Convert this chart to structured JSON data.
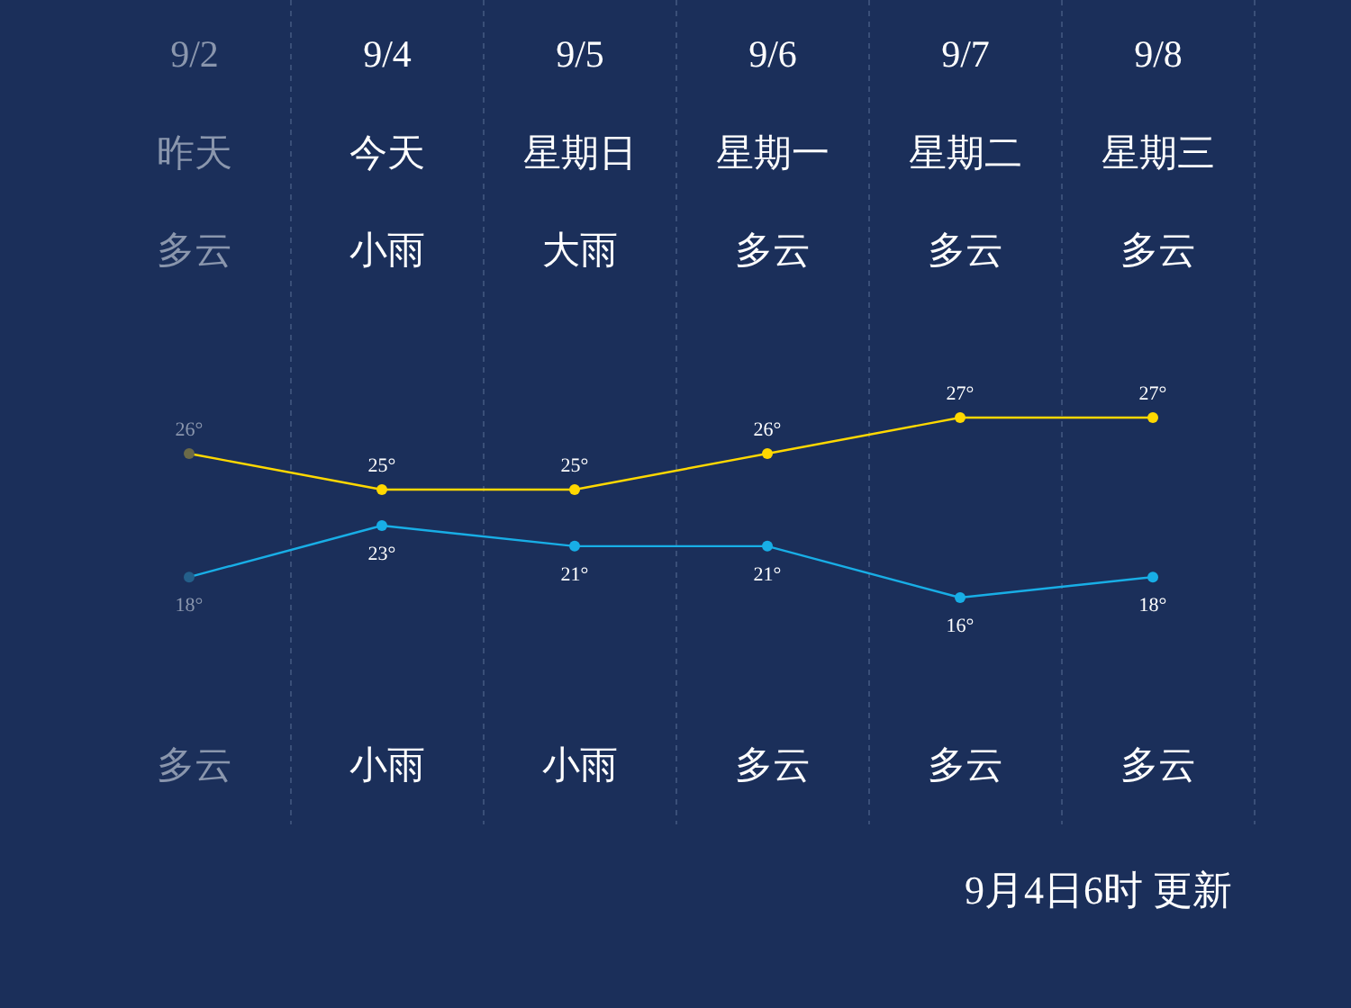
{
  "chart_data": [
    {
      "type": "line",
      "categories": [
        "9/2",
        "9/4",
        "9/5",
        "9/6",
        "9/7",
        "9/8"
      ],
      "series": [
        {
          "color": "#ffd800",
          "colors": [
            "#6b6a48",
            "#ffd800",
            "#ffd800",
            "#ffd800",
            "#ffd800",
            "#ffd800"
          ],
          "values": [
            26,
            25,
            25,
            26,
            27,
            27
          ],
          "value_labels": [
            "26°",
            "25°",
            "25°",
            "26°",
            "27°",
            "27°"
          ]
        }
      ],
      "marker": "circle",
      "grid": "x",
      "annotations": [
        "昨天",
        "今天",
        "星期日",
        "星期一",
        "星期二",
        "星期三",
        "多云",
        "小雨",
        "大雨",
        "多云",
        "多云",
        "多云",
        "多云",
        "小雨",
        "小雨",
        "多云",
        "多云",
        "多云",
        "9月4日6时 更新"
      ]
    },
    {
      "type": "line",
      "categories": [
        null,
        null,
        null,
        null,
        null,
        null
      ],
      "series": [
        {
          "color": "#18aee6",
          "colors": [
            "#245f8a",
            "#18aee6",
            "#18aee6",
            "#18aee6",
            "#18aee6",
            "#18aee6"
          ],
          "values": [
            18,
            23,
            21,
            21,
            16,
            18
          ],
          "value_labels": [
            "18°",
            "23°",
            "21°",
            "21°",
            "16°",
            "18°"
          ]
        }
      ],
      "marker": "circle"
    }
  ]
}
